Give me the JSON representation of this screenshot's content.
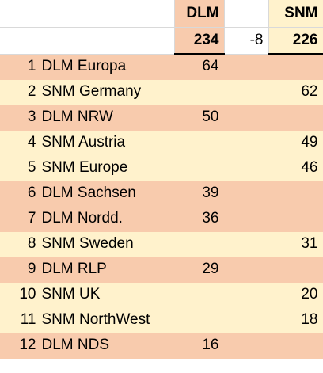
{
  "header": {
    "dlm_label": "DLM",
    "snm_label": "SNM",
    "dlm_total": "234",
    "diff": "-8",
    "snm_total": "226"
  },
  "rows": [
    {
      "rank": "1",
      "name": "DLM Europa",
      "dlm": "64",
      "snm": "",
      "group": "dlm"
    },
    {
      "rank": "2",
      "name": "SNM Germany",
      "dlm": "",
      "snm": "62",
      "group": "snm"
    },
    {
      "rank": "3",
      "name": "DLM NRW",
      "dlm": "50",
      "snm": "",
      "group": "dlm"
    },
    {
      "rank": "4",
      "name": "SNM Austria",
      "dlm": "",
      "snm": "49",
      "group": "snm"
    },
    {
      "rank": "5",
      "name": "SNM Europe",
      "dlm": "",
      "snm": "46",
      "group": "snm"
    },
    {
      "rank": "6",
      "name": "DLM Sachsen",
      "dlm": "39",
      "snm": "",
      "group": "dlm"
    },
    {
      "rank": "7",
      "name": "DLM Nordd.",
      "dlm": "36",
      "snm": "",
      "group": "dlm"
    },
    {
      "rank": "8",
      "name": "SNM Sweden",
      "dlm": "",
      "snm": "31",
      "group": "snm"
    },
    {
      "rank": "9",
      "name": "DLM RLP",
      "dlm": "29",
      "snm": "",
      "group": "dlm"
    },
    {
      "rank": "10",
      "name": "SNM UK",
      "dlm": "",
      "snm": "20",
      "group": "snm"
    },
    {
      "rank": "11",
      "name": "SNM NorthWest",
      "dlm": "",
      "snm": "18",
      "group": "snm"
    },
    {
      "rank": "12",
      "name": "DLM NDS",
      "dlm": "16",
      "snm": "",
      "group": "dlm"
    }
  ],
  "colors": {
    "dlm_fill": "#f8cbad",
    "snm_fill": "#fff2cc",
    "gridline": "#d9d9d9"
  }
}
